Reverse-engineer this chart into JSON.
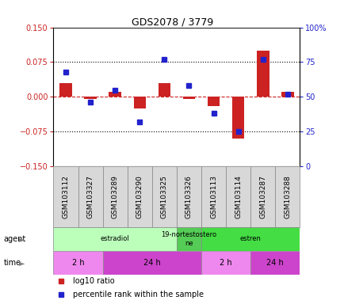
{
  "title": "GDS2078 / 3779",
  "samples": [
    "GSM103112",
    "GSM103327",
    "GSM103289",
    "GSM103290",
    "GSM103325",
    "GSM103326",
    "GSM103113",
    "GSM103114",
    "GSM103287",
    "GSM103288"
  ],
  "log10_ratio": [
    0.03,
    -0.005,
    0.01,
    -0.025,
    0.03,
    -0.005,
    -0.02,
    -0.09,
    0.1,
    0.01
  ],
  "percentile_rank": [
    68,
    46,
    55,
    32,
    77,
    58,
    38,
    25,
    77,
    52
  ],
  "ylim_left": [
    -0.15,
    0.15
  ],
  "ylim_right": [
    0,
    100
  ],
  "yticks_left": [
    -0.15,
    -0.075,
    0,
    0.075,
    0.15
  ],
  "yticks_right": [
    0,
    25,
    50,
    75,
    100
  ],
  "hlines": [
    0.075,
    -0.075
  ],
  "bar_color": "#cc2222",
  "dot_color": "#2222cc",
  "agent_labels": [
    {
      "label": "estradiol",
      "start": 0,
      "end": 5,
      "color": "#bbffbb"
    },
    {
      "label": "19-nortestostero\nne",
      "start": 5,
      "end": 6,
      "color": "#55cc55"
    },
    {
      "label": "estren",
      "start": 6,
      "end": 10,
      "color": "#44dd44"
    }
  ],
  "time_labels": [
    {
      "label": "2 h",
      "start": 0,
      "end": 2,
      "color": "#ee88ee"
    },
    {
      "label": "24 h",
      "start": 2,
      "end": 6,
      "color": "#cc44cc"
    },
    {
      "label": "2 h",
      "start": 6,
      "end": 8,
      "color": "#ee88ee"
    },
    {
      "label": "24 h",
      "start": 8,
      "end": 10,
      "color": "#cc44cc"
    }
  ],
  "legend_bar_color": "#cc2222",
  "legend_dot_color": "#2222cc",
  "legend_bar_label": "log10 ratio",
  "legend_dot_label": "percentile rank within the sample",
  "background_color": "#ffffff",
  "plot_bg_color": "#ffffff",
  "zero_line_color": "#cc2222",
  "grid_color": "#000000",
  "sample_bg_color": "#d8d8d8",
  "sample_font_size": 6.5,
  "bar_width": 0.5
}
